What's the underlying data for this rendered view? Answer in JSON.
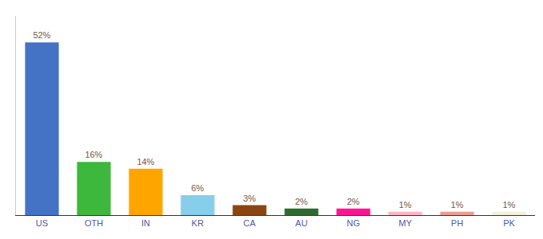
{
  "chart_data": {
    "type": "bar",
    "categories": [
      "US",
      "OTH",
      "IN",
      "KR",
      "CA",
      "AU",
      "NG",
      "MY",
      "PH",
      "PK"
    ],
    "values": [
      52,
      16,
      14,
      6,
      3,
      2,
      2,
      1,
      1,
      1
    ],
    "value_labels": [
      "52%",
      "16%",
      "14%",
      "6%",
      "3%",
      "2%",
      "2%",
      "1%",
      "1%",
      "1%"
    ],
    "data_labels": true,
    "colors": [
      "#4472c4",
      "#3db83d",
      "#ffa500",
      "#87ceeb",
      "#8b4513",
      "#2e6b2e",
      "#ff1493",
      "#ffb6c1",
      "#e8a090",
      "#f5f0dc"
    ],
    "ylim": [
      0,
      60
    ],
    "grid": false,
    "tick_labels": "x"
  }
}
